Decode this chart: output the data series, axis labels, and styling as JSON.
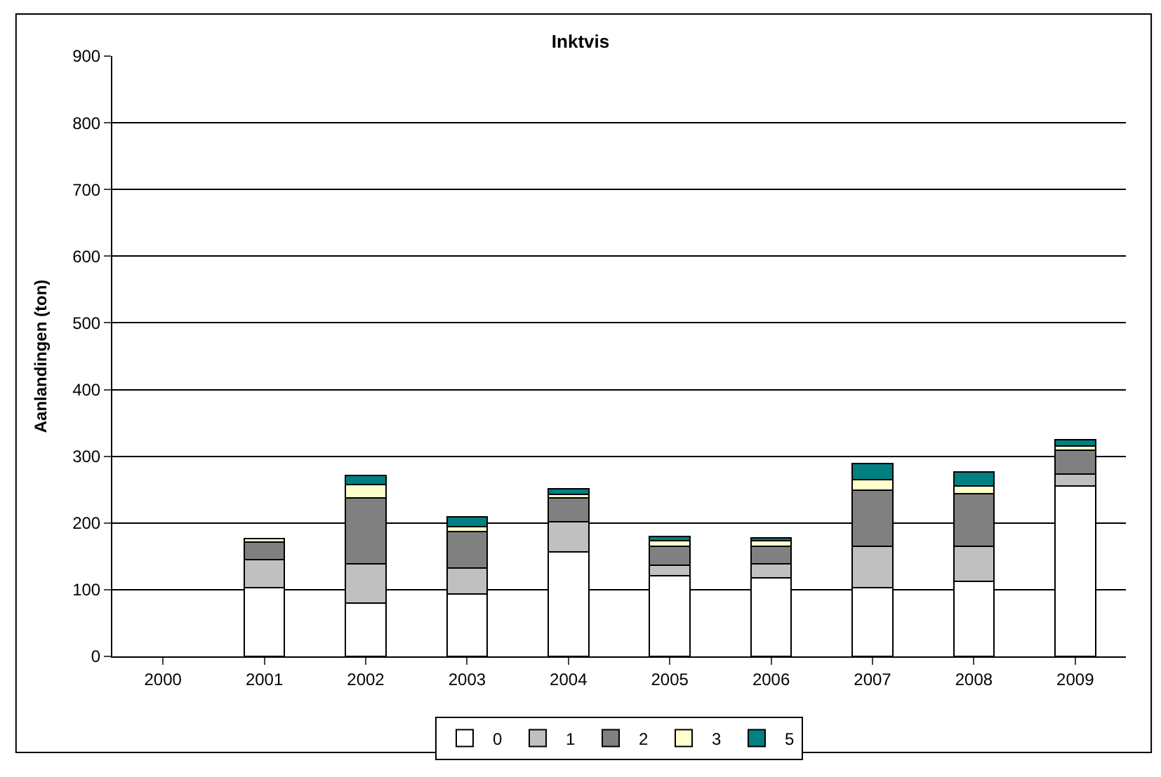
{
  "chart_data": {
    "type": "bar",
    "stacked": true,
    "title": "Inktvis",
    "ylabel": "Aanlandingen (ton)",
    "categories": [
      "2000",
      "2001",
      "2002",
      "2003",
      "2004",
      "2005",
      "2006",
      "2007",
      "2008",
      "2009"
    ],
    "series": [
      {
        "name": "0",
        "color": "#ffffff",
        "values": [
          null,
          103,
          80,
          94,
          157,
          121,
          118,
          103,
          112,
          256
        ]
      },
      {
        "name": "1",
        "color": "#c0c0c0",
        "values": [
          null,
          42,
          59,
          39,
          45,
          16,
          21,
          62,
          53,
          17
        ]
      },
      {
        "name": "2",
        "color": "#808080",
        "values": [
          null,
          26,
          99,
          54,
          36,
          28,
          26,
          84,
          79,
          36
        ]
      },
      {
        "name": "3",
        "color": "#ffffcc",
        "values": [
          null,
          6,
          20,
          8,
          5,
          9,
          9,
          16,
          12,
          6
        ]
      },
      {
        "name": "5",
        "color": "#008080",
        "values": [
          null,
          null,
          13,
          14,
          8,
          6,
          4,
          24,
          21,
          10
        ]
      }
    ],
    "ylim": [
      0,
      900
    ],
    "yticks": [
      0,
      100,
      200,
      300,
      400,
      500,
      600,
      700,
      800,
      900
    ],
    "grid": "y",
    "legend": "bottom"
  }
}
